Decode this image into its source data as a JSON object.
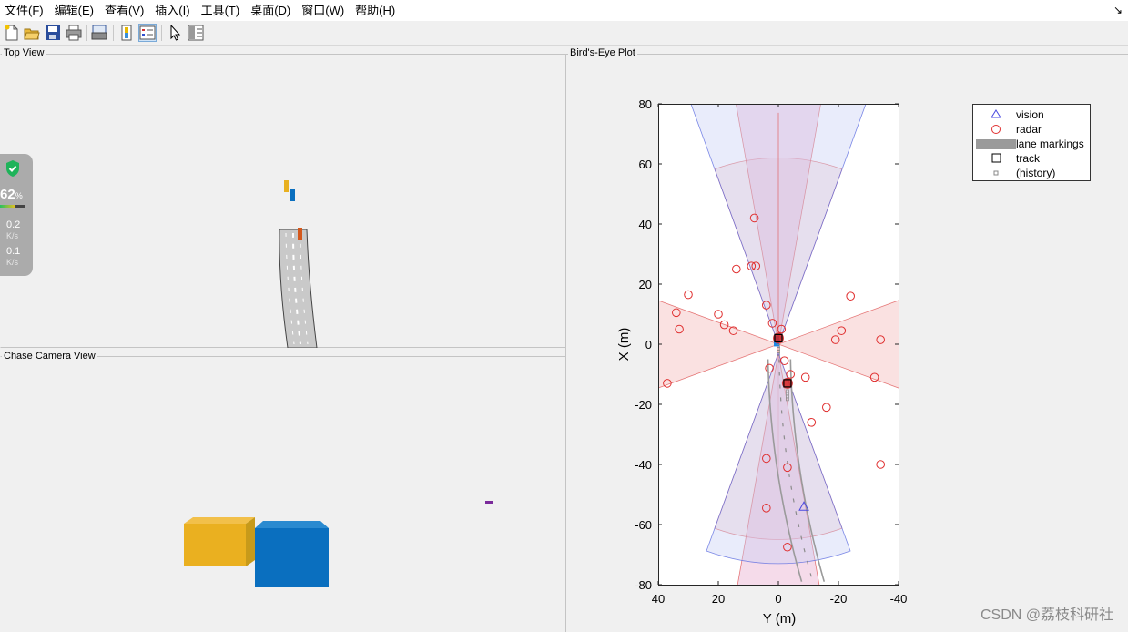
{
  "menu": [
    {
      "label": "文件(F)"
    },
    {
      "label": "编辑(E)"
    },
    {
      "label": "查看(V)"
    },
    {
      "label": "插入(I)"
    },
    {
      "label": "工具(T)"
    },
    {
      "label": "桌面(D)"
    },
    {
      "label": "窗口(W)"
    },
    {
      "label": "帮助(H)"
    }
  ],
  "toolbar_icons": [
    "new-figure-icon",
    "open-file-icon",
    "save-icon",
    "print-icon",
    "print-preview-icon",
    "colorbar-icon",
    "legend-icon",
    "pointer-icon",
    "property-editor-icon"
  ],
  "panels": {
    "top_view": {
      "title": "Top View"
    },
    "chase_view": {
      "title": "Chase Camera View"
    },
    "birds_eye": {
      "title": "Bird's-Eye Plot"
    }
  },
  "perf_widget": {
    "percent": "62",
    "percent_unit": "%",
    "stat1_value": "0.2",
    "stat1_unit": "K/s",
    "stat2_value": "0.1",
    "stat2_unit": "K/s",
    "icon": "shield-check-icon"
  },
  "legend": [
    {
      "label": "vision",
      "symbol": "triangle",
      "color": "#4a4ae0"
    },
    {
      "label": "radar",
      "symbol": "circle",
      "color": "#e03030"
    },
    {
      "label": "lane markings",
      "symbol": "band",
      "color": "#9a9a9a"
    },
    {
      "label": "track",
      "symbol": "square",
      "color": "#000000"
    },
    {
      "label": "(history)",
      "symbol": "small-square",
      "color": "#888888"
    }
  ],
  "chart_data": {
    "type": "scatter",
    "title": "",
    "xlabel": "Y (m)",
    "ylabel": "X (m)",
    "xlim": [
      40,
      -40
    ],
    "ylim": [
      -80,
      80
    ],
    "xticks": [
      40,
      20,
      0,
      -20,
      -40
    ],
    "yticks": [
      80,
      60,
      40,
      20,
      0,
      -20,
      -40,
      -60,
      -80
    ],
    "grid": false,
    "legend_position": "outside-top-right",
    "series": [
      {
        "name": "vision",
        "points": [
          [
            -8.5,
            -54
          ]
        ]
      },
      {
        "name": "radar",
        "points": [
          [
            8,
            42
          ],
          [
            14,
            25
          ],
          [
            9,
            26
          ],
          [
            7.5,
            26
          ],
          [
            4,
            13
          ],
          [
            2,
            7
          ],
          [
            -1,
            5
          ],
          [
            30,
            16.5
          ],
          [
            34,
            10.5
          ],
          [
            20,
            10
          ],
          [
            18,
            6.5
          ],
          [
            33,
            5
          ],
          [
            15,
            4.5
          ],
          [
            -24,
            16
          ],
          [
            -21,
            4.5
          ],
          [
            -19,
            1.5
          ],
          [
            -34,
            1.5
          ],
          [
            -32,
            -11
          ],
          [
            -34,
            -40
          ],
          [
            3,
            -8
          ],
          [
            -2,
            -5.5
          ],
          [
            -4,
            -10
          ],
          [
            -9,
            -11
          ],
          [
            -16,
            -21
          ],
          [
            -11,
            -26
          ],
          [
            37,
            -13
          ],
          [
            4,
            -38
          ],
          [
            -3,
            -41
          ],
          [
            4,
            -54.5
          ],
          [
            -3,
            -67.5
          ]
        ]
      },
      {
        "name": "track",
        "points": [
          [
            0,
            2
          ],
          [
            -3,
            -13
          ]
        ]
      }
    ],
    "colors": {
      "vision": "#4a4ae0",
      "radar": "#e03030",
      "lane": "#8c8c8c"
    }
  },
  "watermark": "CSDN @荔枝科研社"
}
